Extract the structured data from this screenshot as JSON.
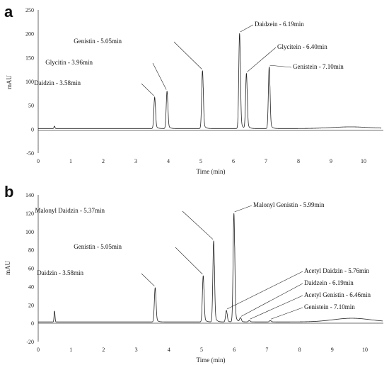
{
  "chart_data": [
    {
      "panel": "a",
      "type": "line",
      "xlabel": "Time (min)",
      "ylabel": "mAU",
      "xlim": [
        0,
        10.6
      ],
      "ylim": [
        -50,
        250
      ],
      "xticks": [
        0,
        1,
        2,
        3,
        4,
        5,
        6,
        7,
        8,
        9,
        10
      ],
      "yticks": [
        -50,
        0,
        50,
        100,
        150,
        200,
        250
      ],
      "baseline": 1.5,
      "peaks": [
        {
          "label": "Daidzin - 3.58min",
          "x": 3.58,
          "y": 67
        },
        {
          "label": "Glycitin - 3.96min",
          "x": 3.96,
          "y": 80
        },
        {
          "label": "Genistin - 5.05min",
          "x": 5.05,
          "y": 123
        },
        {
          "label": "Daidzein - 6.19min",
          "x": 6.19,
          "y": 201
        },
        {
          "label": "Glycitein - 6.40min",
          "x": 6.4,
          "y": 117
        },
        {
          "label": "Genistein - 7.10min",
          "x": 7.1,
          "y": 131
        }
      ]
    },
    {
      "panel": "b",
      "type": "line",
      "xlabel": "Time (min)",
      "ylabel": "mAU",
      "xlim": [
        0,
        10.6
      ],
      "ylim": [
        -20,
        140
      ],
      "xticks": [
        0,
        1,
        2,
        3,
        4,
        5,
        6,
        7,
        8,
        9,
        10
      ],
      "yticks": [
        -20,
        0,
        20,
        40,
        60,
        80,
        100,
        120,
        140
      ],
      "baseline": 1.5,
      "peaks": [
        {
          "label": "Daidzin - 3.58min",
          "x": 3.58,
          "y": 39
        },
        {
          "label": "Genistin - 5.05min",
          "x": 5.05,
          "y": 52
        },
        {
          "label": "Malonyl Daidzin - 5.37min",
          "x": 5.37,
          "y": 90
        },
        {
          "label": "Acetyl Daidzin - 5.76min",
          "x": 5.76,
          "y": 14
        },
        {
          "label": "Malonyl Genistin - 5.99min",
          "x": 5.99,
          "y": 120
        },
        {
          "label": "Daidzein - 6.19min",
          "x": 6.19,
          "y": 6
        },
        {
          "label": "Acetyl Genistin - 6.46min",
          "x": 6.46,
          "y": 3
        },
        {
          "label": "Genistein - 7.10min",
          "x": 7.1,
          "y": 3
        }
      ]
    }
  ]
}
